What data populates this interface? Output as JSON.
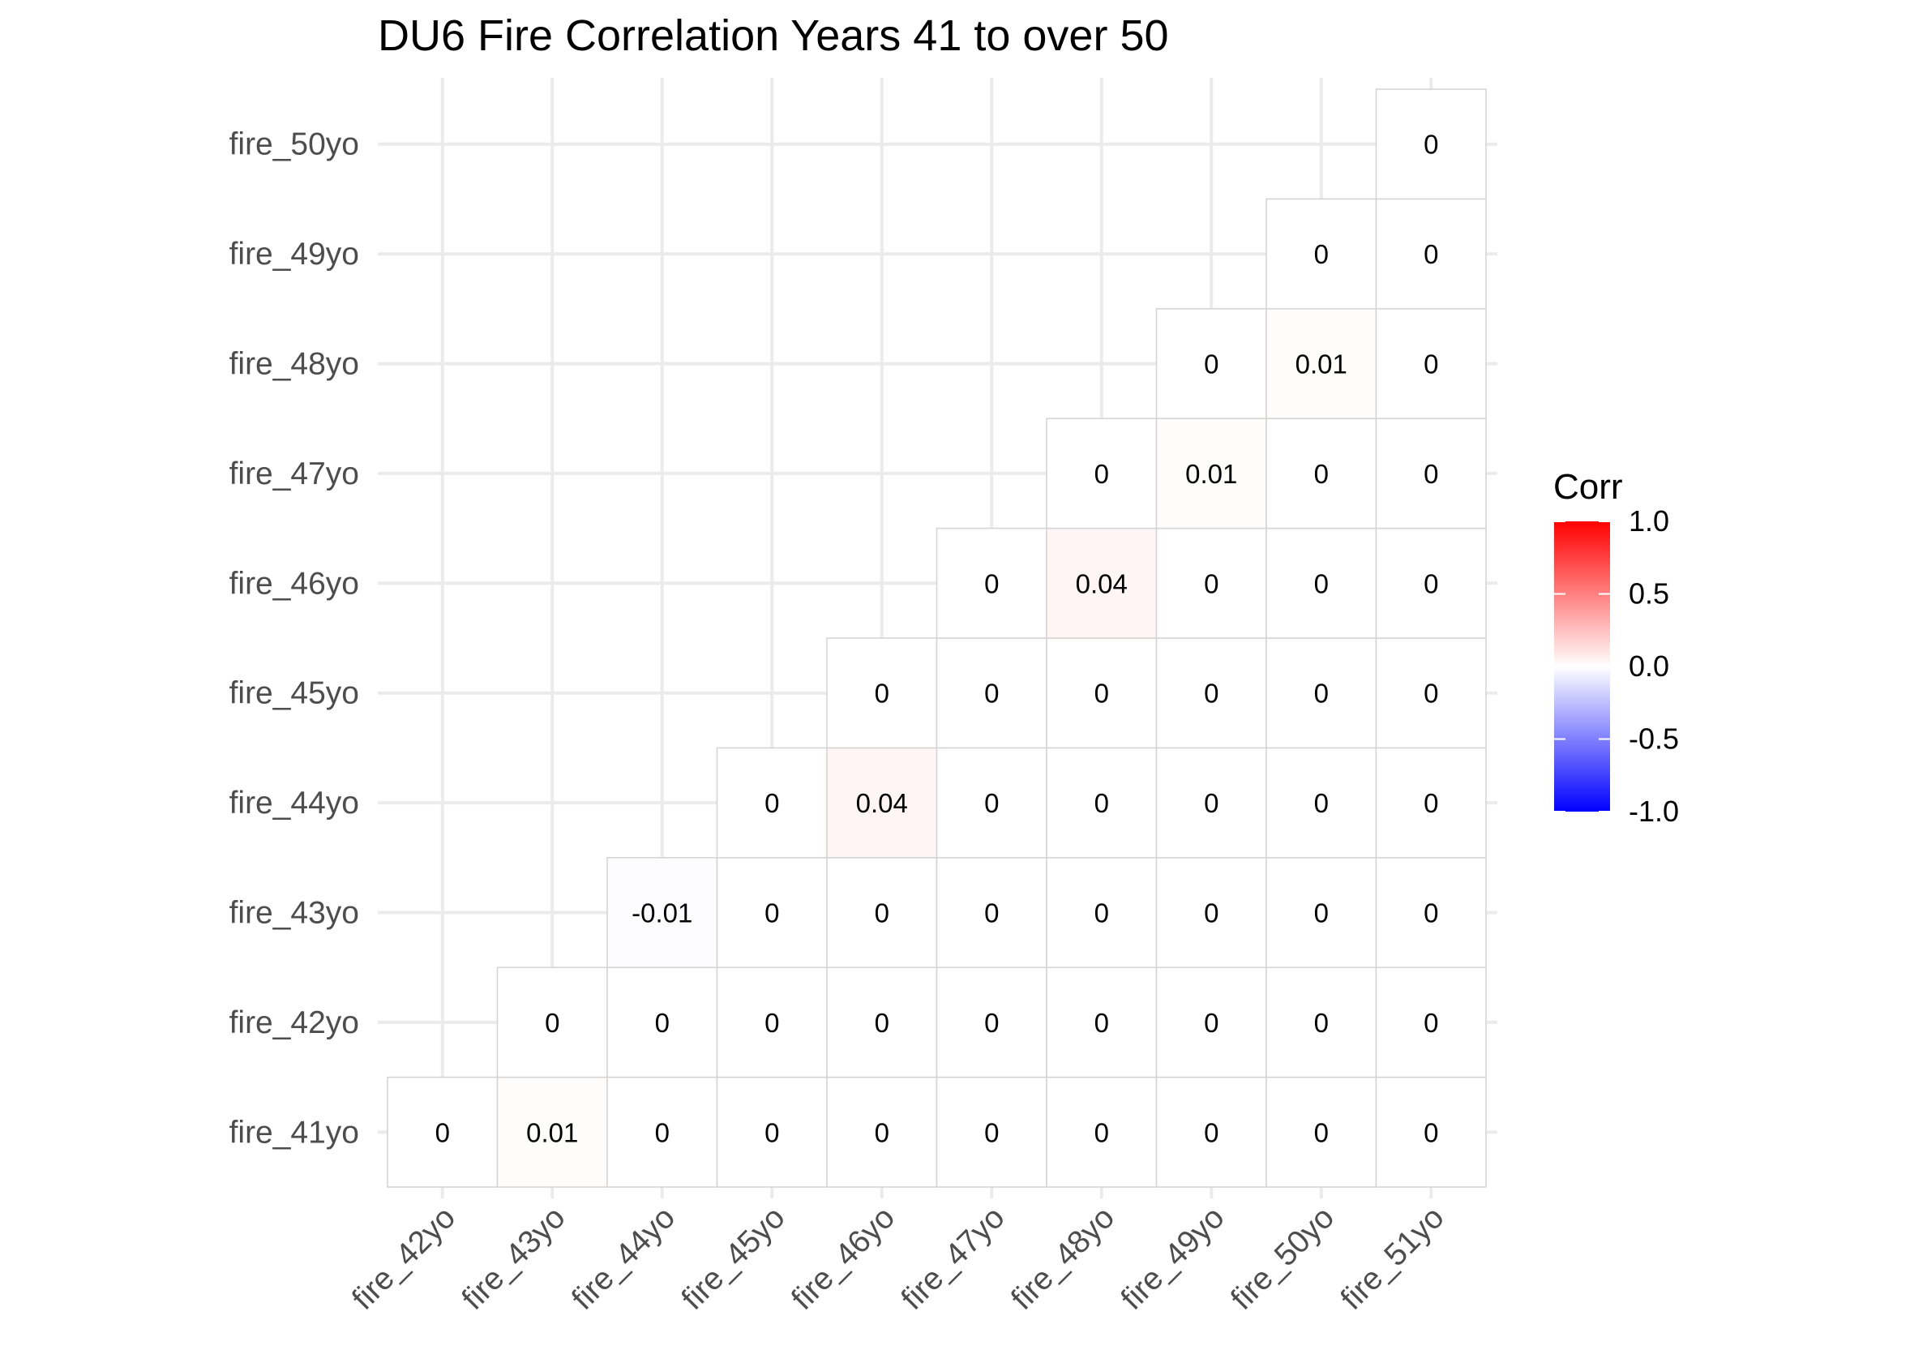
{
  "chart_data": {
    "type": "heatmap",
    "title": "DU6 Fire Correlation Years 41 to over 50",
    "xlabel": "",
    "ylabel": "",
    "x_categories": [
      "fire_42yo",
      "fire_43yo",
      "fire_44yo",
      "fire_45yo",
      "fire_46yo",
      "fire_47yo",
      "fire_48yo",
      "fire_49yo",
      "fire_50yo",
      "fire_51yo"
    ],
    "y_categories": [
      "fire_41yo",
      "fire_42yo",
      "fire_43yo",
      "fire_44yo",
      "fire_45yo",
      "fire_46yo",
      "fire_47yo",
      "fire_48yo",
      "fire_49yo",
      "fire_50yo"
    ],
    "values": [
      [
        0,
        0.01,
        0,
        0,
        0,
        0,
        0,
        0,
        0,
        0
      ],
      [
        null,
        0,
        0,
        0,
        0,
        0,
        0,
        0,
        0,
        0
      ],
      [
        null,
        null,
        -0.01,
        0,
        0,
        0,
        0,
        0,
        0,
        0
      ],
      [
        null,
        null,
        null,
        0,
        0.04,
        0,
        0,
        0,
        0,
        0
      ],
      [
        null,
        null,
        null,
        null,
        0,
        0,
        0,
        0,
        0,
        0
      ],
      [
        null,
        null,
        null,
        null,
        null,
        0,
        0.04,
        0,
        0,
        0
      ],
      [
        null,
        null,
        null,
        null,
        null,
        null,
        0,
        0.01,
        0,
        0
      ],
      [
        null,
        null,
        null,
        null,
        null,
        null,
        null,
        0,
        0.01,
        0
      ],
      [
        null,
        null,
        null,
        null,
        null,
        null,
        null,
        null,
        0,
        0
      ],
      [
        null,
        null,
        null,
        null,
        null,
        null,
        null,
        null,
        null,
        0
      ]
    ],
    "legend": {
      "title": "Corr",
      "position": "right",
      "range": [
        -1,
        1
      ],
      "ticks": [
        1.0,
        0.5,
        0.0,
        -0.5,
        -1.0
      ],
      "tick_labels": [
        "1.0",
        "0.5",
        "0.0",
        "-0.5",
        "-1.0"
      ],
      "colors": {
        "low": "#0000ff",
        "mid": "#ffffff",
        "high": "#ff0000"
      }
    },
    "grid": true
  }
}
